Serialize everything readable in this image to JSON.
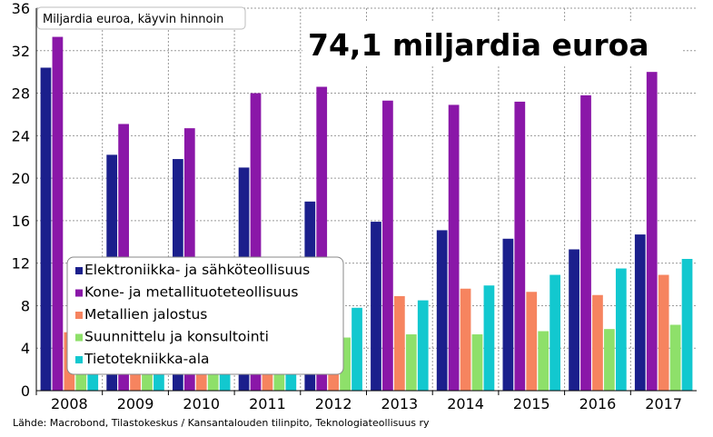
{
  "chart_data": {
    "type": "bar",
    "unit_label": "Miljardia euroa, käyvin hinnoin",
    "headline": "74,1 miljardia euroa",
    "source": "Lähde: Macrobond, Tilastokeskus / Kansantalouden tilinpito, Teknologiateollisuus ry",
    "categories": [
      "2008",
      "2009",
      "2010",
      "2011",
      "2012",
      "2013",
      "2014",
      "2015",
      "2016",
      "2017"
    ],
    "ylim": [
      0,
      36
    ],
    "yticks": [
      "0",
      "4",
      "8",
      "12",
      "16",
      "20",
      "24",
      "28",
      "32",
      "36"
    ],
    "grid": true,
    "legend_position": "bottom-left",
    "series": [
      {
        "name": "Elektroniikka- ja sähköteollisuus",
        "color": "#1b1f8c",
        "values": [
          30.4,
          22.2,
          21.8,
          21.0,
          17.8,
          15.9,
          15.1,
          14.3,
          13.3,
          14.7
        ]
      },
      {
        "name": "Kone- ja metallituoteteollisuus",
        "color": "#8a17a8",
        "values": [
          33.3,
          25.1,
          24.7,
          28.0,
          28.6,
          27.3,
          26.9,
          27.2,
          27.8,
          30.0
        ]
      },
      {
        "name": "Metallien jalostus",
        "color": "#f6845f",
        "values": [
          5.5,
          5.0,
          6.0,
          6.5,
          6.8,
          8.9,
          9.6,
          9.3,
          9.0,
          10.9
        ]
      },
      {
        "name": "Suunnittelu ja konsultointi",
        "color": "#8ee06a",
        "values": [
          4.0,
          4.0,
          4.2,
          4.3,
          5.0,
          5.3,
          5.3,
          5.6,
          5.8,
          6.2
        ]
      },
      {
        "name": "Tietotekniikka-ala",
        "color": "#12c8cf",
        "values": [
          6.5,
          6.5,
          7.0,
          7.2,
          7.8,
          8.5,
          9.9,
          10.9,
          11.5,
          12.4
        ]
      }
    ]
  }
}
